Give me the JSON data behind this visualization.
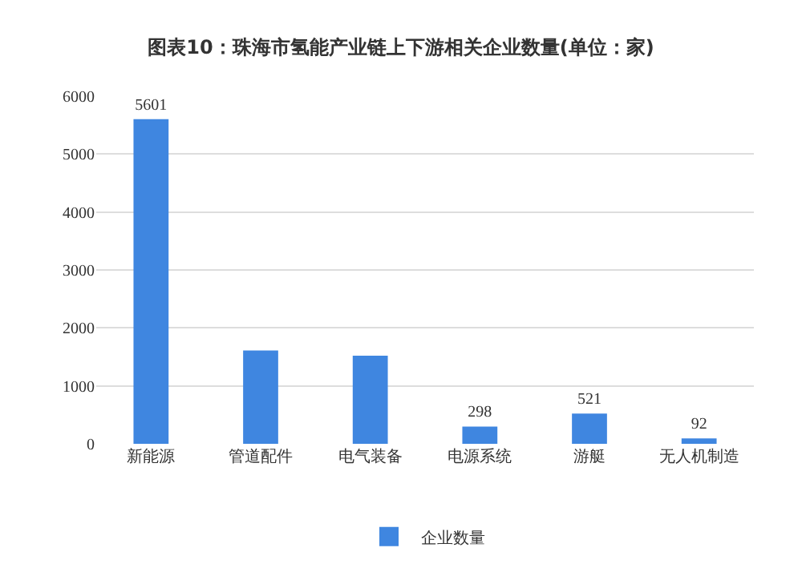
{
  "chart_data": {
    "type": "bar",
    "title": "图表10：珠海市氢能产业链上下游相关企业数量(单位：家)",
    "categories": [
      "新能源",
      "管道配件",
      "电气装备",
      "电源系统",
      "游艇",
      "无人机制造"
    ],
    "series": [
      {
        "name": "企业数量",
        "color": "#3f86e0",
        "values": [
          5601,
          1610,
          1520,
          298,
          521,
          92
        ],
        "value_labels": [
          "5601",
          null,
          null,
          "298",
          "521",
          "92"
        ]
      }
    ],
    "ylim": [
      0,
      6000
    ],
    "yticks": [
      0,
      1000,
      2000,
      3000,
      4000,
      5000,
      6000
    ],
    "grid": "y",
    "legend": "bottom"
  }
}
